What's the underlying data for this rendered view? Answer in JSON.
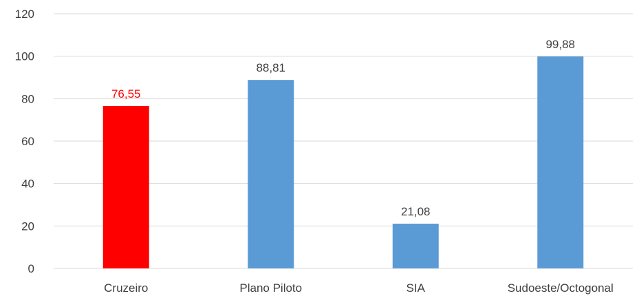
{
  "chart_data": {
    "type": "bar",
    "title": "",
    "xlabel": "",
    "ylabel": "",
    "categories": [
      "Cruzeiro",
      "Plano Piloto",
      "SIA",
      "Sudoeste/Octogonal"
    ],
    "values": [
      76.55,
      88.81,
      21.08,
      99.88
    ],
    "data_labels": [
      "76,55",
      "88,81",
      "21,08",
      "99,88"
    ],
    "bar_colors": [
      "#ff0000",
      "#5b9bd5",
      "#5b9bd5",
      "#5b9bd5"
    ],
    "data_label_colors": [
      "#ff0000",
      "#404040",
      "#404040",
      "#404040"
    ],
    "ylim": [
      0,
      120
    ],
    "yticks": [
      0,
      20,
      40,
      60,
      80,
      100,
      120
    ],
    "grid": true,
    "gridline_color": "#d9d9d9",
    "legend": "none"
  }
}
